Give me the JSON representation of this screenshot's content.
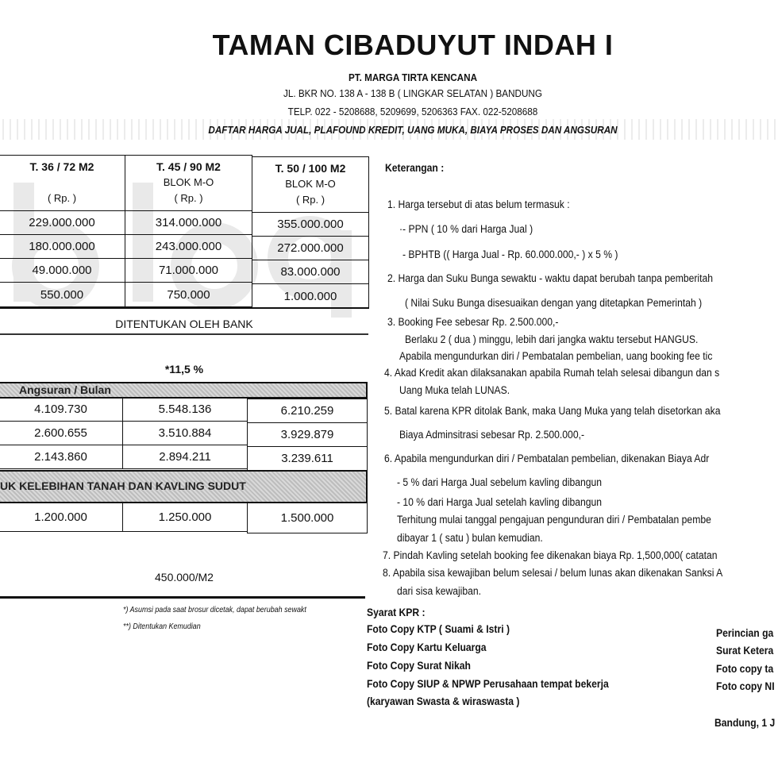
{
  "header": {
    "title": "TAMAN CIBADUYUT INDAH  I",
    "company": "PT. MARGA TIRTA KENCANA",
    "address": "JL. BKR NO. 138 A - 138 B ( LINGKAR SELATAN )  BANDUNG",
    "phone": "TELP. 022 - 5208688, 5209699, 5206363   FAX. 022-5208688",
    "subtitle": "DAFTAR HARGA JUAL, PLAFOUND KREDIT, UANG MUKA, BIAYA PROSES DAN ANGSURAN"
  },
  "watermark": "blog",
  "table": {
    "columns": [
      {
        "type": "T. 36 / 72 M2",
        "blok": "",
        "unit": "( Rp. )"
      },
      {
        "type": "T. 45 / 90 M2",
        "blok": "BLOK M-O",
        "unit": "( Rp. )"
      },
      {
        "type": "T. 50 / 100 M2",
        "blok": "BLOK M-O",
        "unit": "( Rp. )"
      }
    ],
    "price_rows": [
      [
        "229.000.000",
        "314.000.000",
        "355.000.000"
      ],
      [
        "180.000.000",
        "243.000.000",
        "272.000.000"
      ],
      [
        "49.000.000",
        "71.000.000",
        "83.000.000"
      ],
      [
        "550.000",
        "750.000",
        "1.000.000"
      ]
    ],
    "bank_note": "DITENTUKAN OLEH BANK",
    "interest": "*11,5 %",
    "installment_header": "Angsuran  /  Bulan",
    "installment_rows": [
      [
        "4.109.730",
        "5.548.136",
        "6.210.259"
      ],
      [
        "2.600.655",
        "3.510.884",
        "3.929.879"
      ],
      [
        "2.143.860",
        "2.894.211",
        "3.239.611"
      ]
    ],
    "excess_header": "UK KELEBIHAN TANAH DAN KAVLING SUDUT",
    "excess_row": [
      "1.200.000",
      "1.250.000",
      "1.500.000"
    ],
    "excess_price": "450.000/M2"
  },
  "footnotes": [
    "*)  Asumsi pada saat brosur dicetak, dapat berubah sewakt",
    "**)  Ditentukan Kemudian"
  ],
  "keterangan": {
    "title": "Keterangan  :",
    "lines": [
      "1.  Harga tersebut di atas belum termasuk  :",
      "·-  PPN  ( 10 % dari Harga Jual )",
      "- BPHTB  (( Harga Jual - Rp. 60.000.000,- ) x 5 % )",
      "2.  Harga dan Suku Bunga sewaktu - waktu dapat berubah tanpa pemberitah",
      "( Nilai Suku Bunga disesuaikan dengan yang ditetapkan Pemerintah )",
      "3.  Booking Fee sebesar Rp. 2.500.000,-",
      "Berlaku 2 ( dua ) minggu, lebih dari jangka waktu tersebut HANGUS.",
      "Apabila mengundurkan diri  / Pembatalan pembelian, uang booking fee tic",
      "4.  Akad Kredit akan dilaksanakan apabila Rumah telah selesai dibangun dan s",
      "Uang Muka telah LUNAS.",
      "5.  Batal karena KPR ditolak Bank, maka Uang Muka yang telah disetorkan aka",
      "Biaya Adminsitrasi sebesar Rp. 2.500.000,-",
      "6.  Apabila mengundurkan diri  / Pembatalan pembelian, dikenakan Biaya Adr",
      "-  5 %  dari Harga Jual sebelum kavling dibangun",
      "- 10 %  dari Harga Jual setelah kavling dibangun",
      "Terhitung mulai tanggal pengajuan pengunduran diri / Pembatalan pembe",
      "dibayar 1 ( satu )  bulan kemudian.",
      "7.  Pindah Kavling setelah booking fee dikenakan biaya Rp. 1,500,000( catatan",
      "8.  Apabila sisa kewajiban belum selesai / belum lunas akan dikenakan Sanksi A",
      "dari sisa kewajiban."
    ]
  },
  "syarat": {
    "title": "Syarat KPR :",
    "items": [
      "Foto Copy KTP  ( Suami & Istri )",
      "Foto Copy Kartu Keluarga",
      "Foto Copy Surat Nikah",
      "Foto Copy SIUP & NPWP Perusahaan tempat bekerja",
      "(karyawan Swasta & wiraswasta )"
    ],
    "right_items": [
      "Perincian ga",
      "Surat Ketera",
      "Foto copy ta",
      "Foto copy NI"
    ],
    "date": "Bandung, 1 J"
  }
}
